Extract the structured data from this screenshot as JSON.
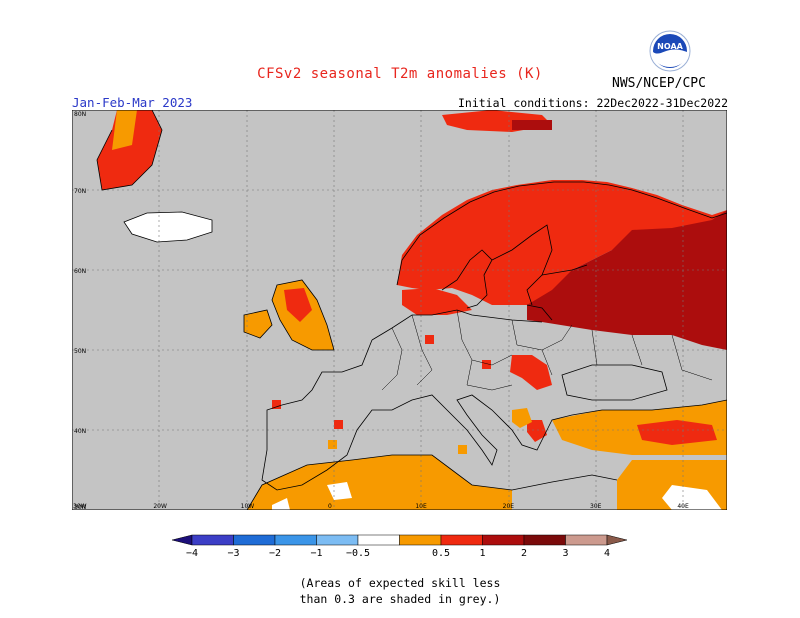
{
  "header": {
    "title": "CFSv2 seasonal T2m anomalies (K)",
    "agency": "NWS/NCEP/CPC",
    "season": "Jan-Feb-Mar 2023",
    "initial_conditions": "Initial conditions: 22Dec2022-31Dec2022",
    "logo_text": "NOAA"
  },
  "map": {
    "lat_labels": [
      "80N",
      "70N",
      "60N",
      "50N",
      "40N",
      "30N"
    ],
    "lon_labels": [
      "30W",
      "20W",
      "10W",
      "0",
      "10E",
      "20E",
      "30E",
      "40E"
    ],
    "lat_range": [
      30,
      80
    ],
    "lon_range": [
      -30,
      45
    ],
    "grid": true,
    "colors": {
      "no_skill": "#c4c4c4",
      "ocean_bg": "#c4c4c4",
      "coast": "#000000",
      "grid": "#777777"
    }
  },
  "legend": {
    "tick_labels": [
      "−4",
      "−3",
      "−2",
      "−1",
      "−0.5",
      "0.5",
      "1",
      "2",
      "3",
      "4"
    ],
    "colors": [
      "#1c0f7a",
      "#3c3ec6",
      "#1f6cd6",
      "#3b95e8",
      "#7cbcf3",
      "#ffffff",
      "#f79a00",
      "#ef2a10",
      "#ac0d0d",
      "#7a0a0a",
      "#cc9a8e",
      "#8a5a4a"
    ]
  },
  "footnote": {
    "line1": "(Areas of expected skill less",
    "line2": "than 0.3 are shaded in grey.)"
  },
  "chart_data": {
    "type": "heatmap",
    "title": "CFSv2 seasonal T2m anomalies (K)",
    "variable": "2m temperature anomaly",
    "units": "K",
    "period": "Jan-Feb-Mar 2023",
    "initial_conditions": "22Dec2022-31Dec2022",
    "xlim": [
      -30,
      45
    ],
    "ylim": [
      30,
      80
    ],
    "regions": [
      {
        "area": "Northwestern Russia",
        "category": "2 to 3"
      },
      {
        "area": "Scandinavia and Finland",
        "category": "1 to 2"
      },
      {
        "area": "Svalbard / Barents",
        "category": "1 to 3"
      },
      {
        "area": "Baltic states",
        "category": "2 to 3"
      },
      {
        "area": "Britain and Ireland",
        "category": "0.5 to 2"
      },
      {
        "area": "Turkey and eastern Mediterranean",
        "category": "0.5 to 2"
      },
      {
        "area": "North Africa",
        "category": "0.5 to 1"
      },
      {
        "area": "Balkans (scattered)",
        "category": "1 to 2"
      },
      {
        "area": "Central and western Europe",
        "category": "skill < 0.3 (grey)"
      }
    ]
  }
}
